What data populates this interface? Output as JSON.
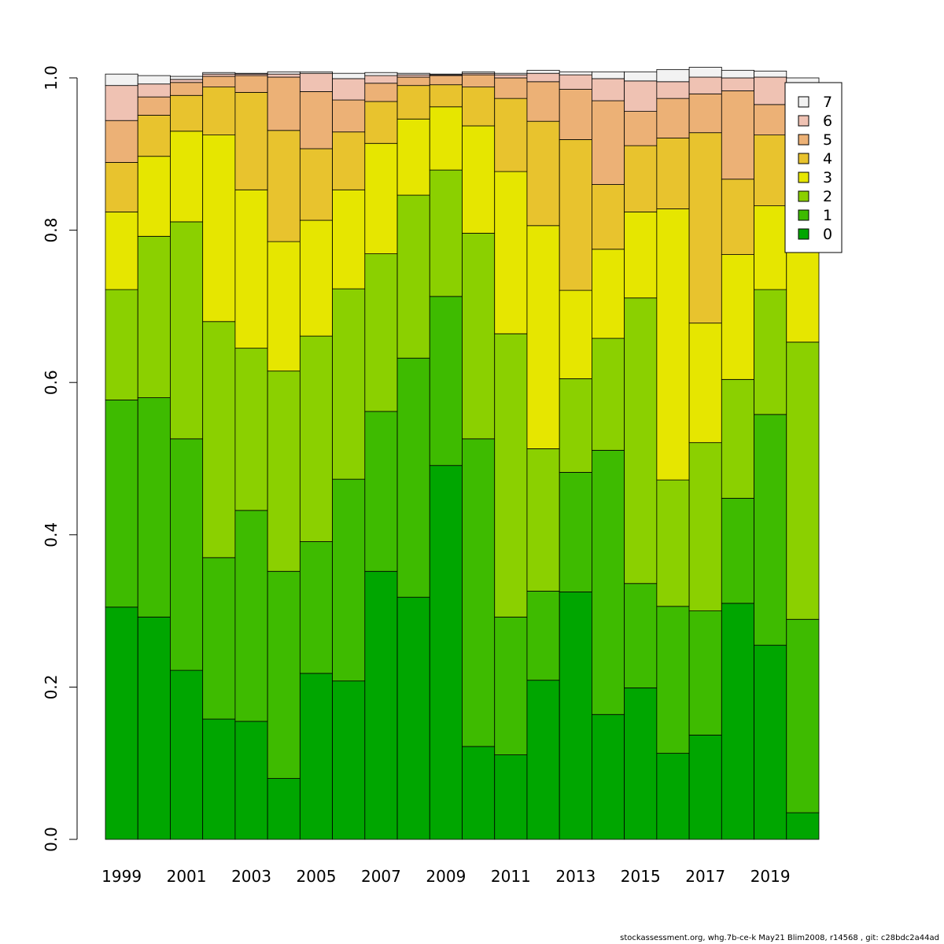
{
  "chart_data": {
    "type": "bar",
    "stacked": true,
    "categories": [
      "1999",
      "2000",
      "2001",
      "2002",
      "2003",
      "2004",
      "2005",
      "2006",
      "2007",
      "2008",
      "2009",
      "2010",
      "2011",
      "2012",
      "2013",
      "2014",
      "2015",
      "2016",
      "2017",
      "2018",
      "2019",
      "2020"
    ],
    "x_tick_labels": [
      "1999",
      "2001",
      "2003",
      "2005",
      "2007",
      "2009",
      "2011",
      "2013",
      "2015",
      "2017",
      "2019"
    ],
    "ylim": [
      0,
      1
    ],
    "y_ticks": [
      0.0,
      0.2,
      0.4,
      0.6,
      0.8,
      1.0
    ],
    "y_tick_labels": [
      "0.0",
      "0.2",
      "0.4",
      "0.6",
      "0.8",
      "1.0"
    ],
    "xlabel": "",
    "ylabel": "",
    "title": "",
    "grid": false,
    "legend_position": "top-right",
    "series": [
      {
        "name": "0",
        "color": "#00A600",
        "values": [
          0.305,
          0.292,
          0.222,
          0.158,
          0.155,
          0.08,
          0.218,
          0.208,
          0.352,
          0.318,
          0.491,
          0.122,
          0.111,
          0.209,
          0.325,
          0.164,
          0.199,
          0.113,
          0.137,
          0.31,
          0.255,
          0.035
        ]
      },
      {
        "name": "1",
        "color": "#3EBB00",
        "values": [
          0.272,
          0.288,
          0.304,
          0.212,
          0.277,
          0.272,
          0.173,
          0.265,
          0.21,
          0.314,
          0.222,
          0.404,
          0.181,
          0.117,
          0.157,
          0.347,
          0.137,
          0.193,
          0.163,
          0.138,
          0.303,
          0.254
        ]
      },
      {
        "name": "2",
        "color": "#8BD000",
        "values": [
          0.145,
          0.212,
          0.285,
          0.31,
          0.213,
          0.263,
          0.27,
          0.25,
          0.207,
          0.214,
          0.166,
          0.27,
          0.372,
          0.187,
          0.123,
          0.147,
          0.375,
          0.166,
          0.221,
          0.156,
          0.164,
          0.364
        ]
      },
      {
        "name": "3",
        "color": "#E6E600",
        "values": [
          0.102,
          0.105,
          0.119,
          0.245,
          0.208,
          0.17,
          0.152,
          0.13,
          0.145,
          0.1,
          0.083,
          0.141,
          0.213,
          0.293,
          0.116,
          0.117,
          0.113,
          0.356,
          0.157,
          0.164,
          0.11,
          0.172
        ]
      },
      {
        "name": "4",
        "color": "#E8C32E",
        "values": [
          0.065,
          0.054,
          0.047,
          0.063,
          0.128,
          0.146,
          0.094,
          0.076,
          0.055,
          0.044,
          0.029,
          0.051,
          0.096,
          0.137,
          0.198,
          0.085,
          0.087,
          0.093,
          0.25,
          0.099,
          0.093,
          0.084
        ]
      },
      {
        "name": "5",
        "color": "#ECB176",
        "values": [
          0.055,
          0.024,
          0.017,
          0.014,
          0.022,
          0.07,
          0.075,
          0.042,
          0.024,
          0.011,
          0.012,
          0.016,
          0.027,
          0.052,
          0.066,
          0.11,
          0.045,
          0.052,
          0.051,
          0.116,
          0.04,
          0.06
        ]
      },
      {
        "name": "6",
        "color": "#EFC2B3",
        "values": [
          0.046,
          0.017,
          0.004,
          0.003,
          0.002,
          0.004,
          0.024,
          0.028,
          0.01,
          0.003,
          0.001,
          0.002,
          0.004,
          0.011,
          0.019,
          0.029,
          0.04,
          0.022,
          0.022,
          0.017,
          0.036,
          0.02
        ]
      },
      {
        "name": "7",
        "color": "#F2F2F2",
        "values": [
          0.015,
          0.011,
          0.004,
          0.002,
          0.001,
          0.003,
          0.002,
          0.007,
          0.004,
          0.002,
          0.001,
          0.002,
          0.002,
          0.004,
          0.004,
          0.009,
          0.012,
          0.016,
          0.013,
          0.01,
          0.008,
          0.011
        ]
      }
    ],
    "legend_order": [
      "7",
      "6",
      "5",
      "4",
      "3",
      "2",
      "1",
      "0"
    ]
  },
  "footer": "stockassessment.org, whg.7b-ce-k  May21  Blim2008, r14568 , git: c28bdc2a44ad"
}
